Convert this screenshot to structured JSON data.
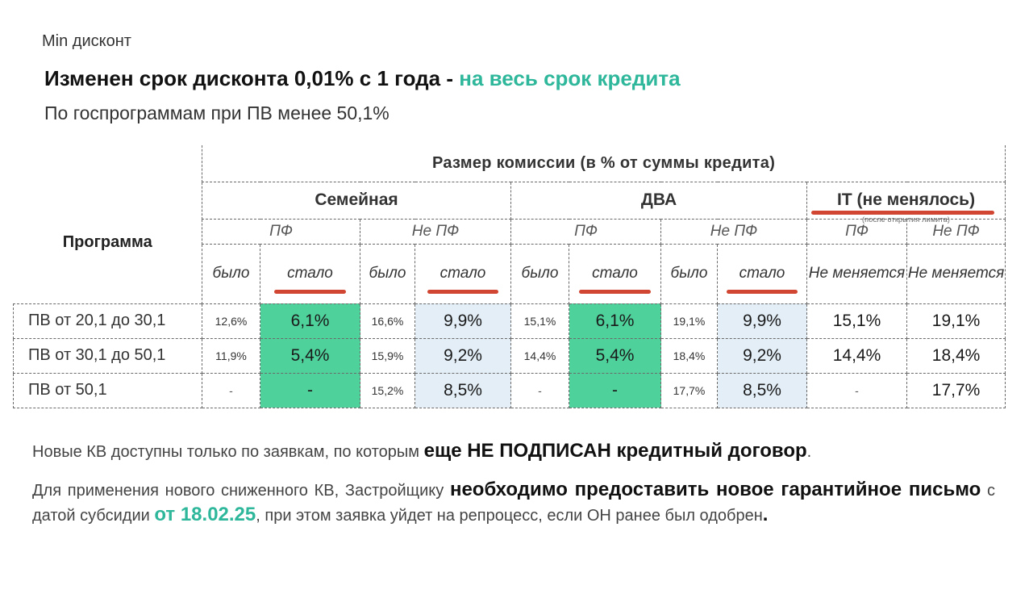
{
  "header": {
    "eyebrow": "Min дисконт",
    "title_main": "Изменен срок дисконта 0,01% с 1 года  - ",
    "title_accent": "на весь срок кредита",
    "subtitle": "По госпрограммам при ПВ менее 50,1%"
  },
  "table": {
    "program_header": "Программа",
    "main_header": "Размер комиссии (в % от суммы кредита)",
    "groups": {
      "family": "Семейная",
      "dva": "ДВА",
      "it": "IT  (не менялось)",
      "it_note": "(после открытия лимита)"
    },
    "sub": {
      "pf": "ПФ",
      "not_pf": "Не ПФ"
    },
    "cols": {
      "was": "было",
      "now": "стало",
      "unchanged": "Не меняется"
    },
    "rows": [
      {
        "label": "ПВ от 20,1 до 30,1",
        "fam_pf_was": "12,6%",
        "fam_pf_now": "6,1%",
        "fam_npf_was": "16,6%",
        "fam_npf_now": "9,9%",
        "dva_pf_was": "15,1%",
        "dva_pf_now": "6,1%",
        "dva_npf_was": "19,1%",
        "dva_npf_now": "9,9%",
        "it_pf": "15,1%",
        "it_npf": "19,1%"
      },
      {
        "label": "ПВ от 30,1 до 50,1",
        "fam_pf_was": "11,9%",
        "fam_pf_now": "5,4%",
        "fam_npf_was": "15,9%",
        "fam_npf_now": "9,2%",
        "dva_pf_was": "14,4%",
        "dva_pf_now": "5,4%",
        "dva_npf_was": "18,4%",
        "dva_npf_now": "9,2%",
        "it_pf": "14,4%",
        "it_npf": "18,4%"
      },
      {
        "label": "ПВ от 50,1",
        "fam_pf_was": "-",
        "fam_pf_now": "-",
        "fam_npf_was": "15,2%",
        "fam_npf_now": "8,5%",
        "dva_pf_was": "-",
        "dva_pf_now": "-",
        "dva_npf_was": "17,7%",
        "dva_npf_now": "8,5%",
        "it_pf": "-",
        "it_npf": "17,7%"
      }
    ]
  },
  "notes": {
    "p1_text": "Новые КВ доступны только по заявкам, по которым ",
    "p1_bold": "еще НЕ ПОДПИСАН кредитный договор",
    "p1_end": ".",
    "p2_text1": "Для применения нового сниженного КВ, Застройщику ",
    "p2_bold": "необходимо предоставить новое гарантийное письмо",
    "p2_text2": " с датой субсидии ",
    "p2_accent": "от 18.02.25",
    "p2_text3": ", при этом заявка уйдет на репроцесс, если ОН ранее был одобрен",
    "p2_end": "."
  },
  "colors": {
    "accent": "#2eb79b",
    "highlight_green": "#4fd19c",
    "highlight_blue": "#e3eef7",
    "underline_red": "#d14632"
  }
}
